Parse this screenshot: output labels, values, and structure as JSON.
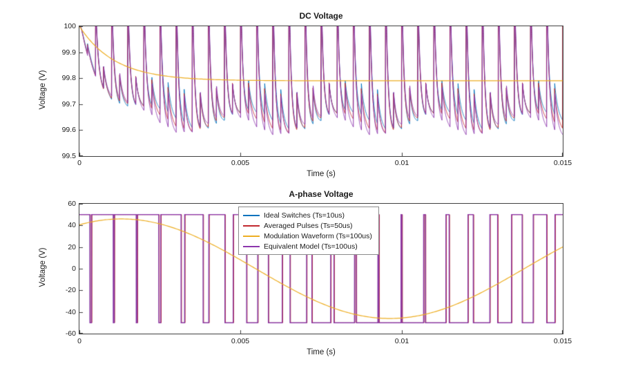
{
  "figure": {
    "background": "#ffffff"
  },
  "chart_data": [
    {
      "type": "line",
      "title": "DC Voltage",
      "xlabel": "Time (s)",
      "ylabel": "Voltage (V)",
      "xlim": [
        0,
        0.015
      ],
      "ylim": [
        99.5,
        100
      ],
      "xticks": [
        0,
        0.005,
        0.01,
        0.015
      ],
      "xtick_labels": [
        "0",
        "0.005",
        "0.01",
        "0.015"
      ],
      "yticks": [
        100,
        99.9,
        99.8,
        99.7,
        99.6,
        99.5
      ],
      "ytick_labels": [
        "100",
        "99.9",
        "99.8",
        "99.7",
        "99.6",
        "99.5"
      ],
      "grid": false,
      "legend": false,
      "ripple_summary": {
        "peak": 100,
        "steady_min": 99.58,
        "average_settle": 99.79
      },
      "series": [
        {
          "name": "Ideal Switches (Ts=10us)",
          "color": "#0072BD",
          "kind": "dc_ripple",
          "carrier_hz": 2000,
          "depth": 0.375,
          "env_tau": 0.0008,
          "t_shift": 0,
          "wobble_phase": 0,
          "line_width": 1
        },
        {
          "name": "Averaged Pulses (Ts=50us)",
          "color": "#C1272D",
          "kind": "dc_ripple",
          "carrier_hz": 2000,
          "depth": 0.385,
          "env_tau": 0.0008,
          "t_shift": 4e-06,
          "wobble_phase": 0.6,
          "line_width": 1
        },
        {
          "name": "Modulation Waveform (Ts=100us)",
          "color": "#EDAD21",
          "kind": "dc_average",
          "v_start": 100,
          "v_settle": 99.79,
          "tau": 0.0011,
          "line_width": 1.2,
          "points": [
            [
              0,
              100
            ],
            [
              0.0005,
              99.923
            ],
            [
              0.001,
              99.875
            ],
            [
              0.002,
              99.822
            ],
            [
              0.003,
              99.798
            ],
            [
              0.005,
              99.791
            ],
            [
              0.01,
              99.79
            ],
            [
              0.015,
              99.79
            ]
          ]
        },
        {
          "name": "Equivalent Model (Ts=100us)",
          "color": "#8C36AC",
          "kind": "dc_ripple",
          "carrier_hz": 2000,
          "depth": 0.395,
          "env_tau": 0.0008,
          "t_shift": -4e-06,
          "wobble_phase": 1.2,
          "line_width": 1
        }
      ]
    },
    {
      "type": "line",
      "title": "A-phase Voltage",
      "xlabel": "Time (s)",
      "ylabel": "Voltage (V)",
      "xlim": [
        0,
        0.015
      ],
      "ylim": [
        -60,
        60
      ],
      "xticks": [
        0,
        0.005,
        0.01,
        0.015
      ],
      "xtick_labels": [
        "0",
        "0.005",
        "0.01",
        "0.015"
      ],
      "yticks": [
        60,
        40,
        20,
        0,
        -20,
        -40,
        -60
      ],
      "ytick_labels": [
        "60",
        "40",
        "20",
        "0",
        "-20",
        "-40",
        "-60"
      ],
      "grid": false,
      "legend": true,
      "pwm_levels": [
        50,
        -50
      ],
      "modulation": {
        "amp": 46,
        "freq_hz": 60,
        "phase_rad": 1.08
      },
      "series": [
        {
          "name": "Ideal Switches (Ts=10us)",
          "color": "#0072BD",
          "kind": "pwm",
          "amp": 50,
          "carrier_amp": 50,
          "carrier_hz": 1400,
          "t_shift": 0,
          "line_width": 1
        },
        {
          "name": "Averaged Pulses (Ts=50us)",
          "color": "#C1272D",
          "kind": "pwm",
          "amp": 50,
          "carrier_amp": 50,
          "carrier_hz": 1400,
          "t_shift": -8e-06,
          "line_width": 1
        },
        {
          "name": "Modulation Waveform (Ts=100us)",
          "color": "#EDAD21",
          "kind": "sine",
          "amp": 46,
          "freq_hz": 60,
          "phase_rad": 1.08,
          "line_width": 1.2,
          "points": [
            [
              0,
              40.6
            ],
            [
              0.0013,
              46
            ],
            [
              0.0055,
              0
            ],
            [
              0.0096,
              -46
            ],
            [
              0.0138,
              0
            ],
            [
              0.015,
              20.1
            ]
          ]
        },
        {
          "name": "Equivalent Model (Ts=100us)",
          "color": "#8C36AC",
          "kind": "pwm",
          "amp": 50,
          "carrier_amp": 50,
          "carrier_hz": 1400,
          "t_shift": 8e-06,
          "line_width": 1.2
        }
      ]
    }
  ]
}
